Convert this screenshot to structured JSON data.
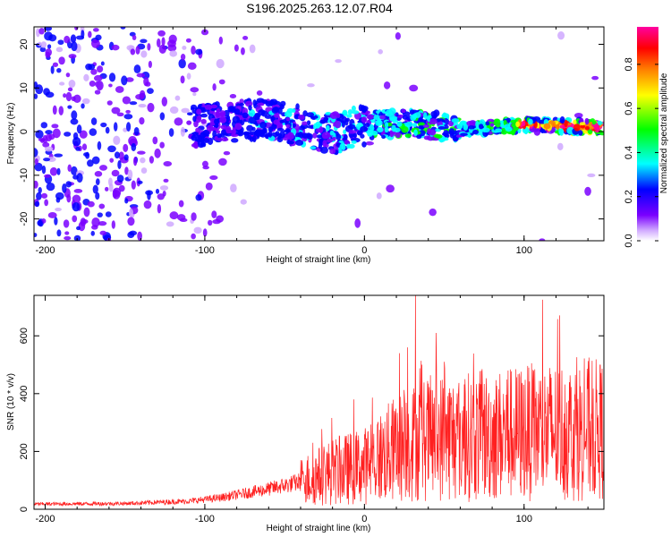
{
  "chart_data": [
    {
      "type": "heatmap",
      "title": "S196.2025.263.12.07.R04",
      "xlabel": "Height of straight line (km)",
      "ylabel": "Frequency (Hz)",
      "xlim": [
        -207,
        150
      ],
      "ylim": [
        -25,
        24
      ],
      "x_ticks": [
        -200,
        -100,
        0,
        100
      ],
      "x_tick_labels": [
        "-200",
        "-100",
        "0",
        "100"
      ],
      "y_ticks": [
        -20,
        -10,
        0,
        10,
        20
      ],
      "y_tick_labels": [
        "-20",
        "-10",
        "0",
        "10",
        "20"
      ],
      "colorbar": {
        "label": "Normalized spectral amplitude",
        "range": [
          0,
          0.97
        ],
        "ticks": [
          0.0,
          0.2,
          0.4,
          0.6,
          0.8
        ],
        "tick_labels": [
          "0.0",
          "0.2",
          "0.4",
          "0.6",
          "0.8"
        ],
        "colormap": [
          "#ffffff",
          "#cfa8ff",
          "#7a00ff",
          "#0000ff",
          "#00ffff",
          "#00ff00",
          "#ffff00",
          "#ff8000",
          "#ff0000",
          "#ff00a0"
        ]
      },
      "ridge": {
        "description_points_x": [
          -100,
          -60,
          -20,
          0,
          30,
          60,
          100,
          150
        ],
        "description_points_y": [
          1.5,
          3,
          -0.5,
          1.5,
          2,
          0.5,
          1.5,
          1
        ]
      }
    },
    {
      "type": "line",
      "title": "",
      "xlabel": "Height of straight line (km)",
      "ylabel": "SNR (10 * v/v)",
      "xlim": [
        -207,
        150
      ],
      "ylim": [
        0,
        740
      ],
      "x_ticks": [
        -200,
        -100,
        0,
        100
      ],
      "x_tick_labels": [
        "-200",
        "-100",
        "0",
        "100"
      ],
      "y_ticks": [
        0,
        200,
        400,
        600
      ],
      "y_tick_labels": [
        "0",
        "200",
        "400",
        "600"
      ],
      "line_color": "#ff2020",
      "envelope_x": [
        -207,
        -150,
        -110,
        -90,
        -60,
        -40,
        -20,
        0,
        20,
        30,
        45,
        60,
        80,
        100,
        120,
        150
      ],
      "envelope_y": [
        18,
        20,
        28,
        40,
        70,
        95,
        130,
        150,
        210,
        230,
        250,
        250,
        255,
        265,
        270,
        275
      ],
      "spikes": [
        {
          "x": 32,
          "y": 740
        },
        {
          "x": 45,
          "y": 610
        },
        {
          "x": 27,
          "y": 560
        },
        {
          "x": 22,
          "y": 540
        },
        {
          "x": 36,
          "y": 500
        },
        {
          "x": 50,
          "y": 510
        },
        {
          "x": 90,
          "y": 480
        },
        {
          "x": 63,
          "y": 450
        }
      ]
    }
  ]
}
